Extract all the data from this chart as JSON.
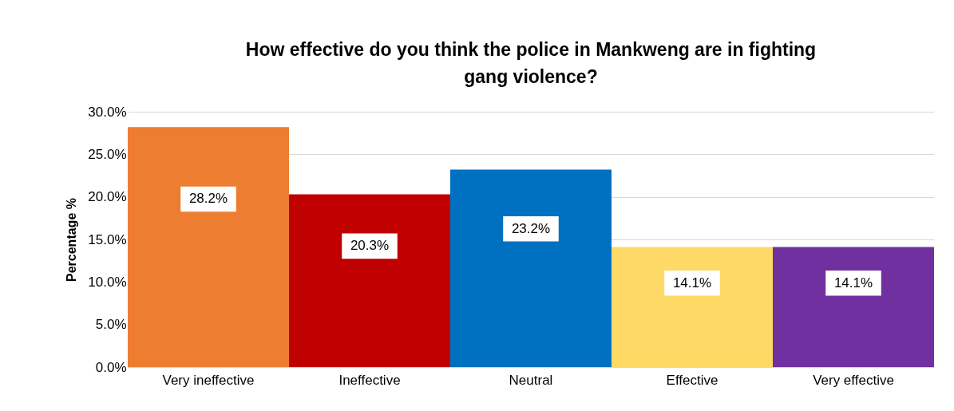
{
  "chart_data": {
    "type": "bar",
    "title": [
      "How effective do you think the police in Mankweng are in fighting",
      "gang violence?"
    ],
    "ylabel": "Percentage %",
    "categories": [
      "Very ineffective",
      "Ineffective",
      "Neutral",
      "Effective",
      "Very effective"
    ],
    "values": [
      28.2,
      20.3,
      23.2,
      14.1,
      14.1
    ],
    "colors": [
      "#ed7d31",
      "#c00000",
      "#0070c0",
      "#ffd966",
      "#7030a0"
    ],
    "value_labels": [
      "28.2%",
      "20.3%",
      "23.2%",
      "14.1%",
      "14.1%"
    ],
    "ylim": [
      0,
      30
    ],
    "yticks": [
      {
        "value": 0,
        "label": "0.0%"
      },
      {
        "value": 5,
        "label": "5.0%"
      },
      {
        "value": 10,
        "label": "10.0%"
      },
      {
        "value": 15,
        "label": "15.0%"
      },
      {
        "value": 20,
        "label": "20.0%"
      },
      {
        "value": 25,
        "label": "25.0%"
      },
      {
        "value": 30,
        "label": "30.0%"
      }
    ],
    "grid": true
  }
}
